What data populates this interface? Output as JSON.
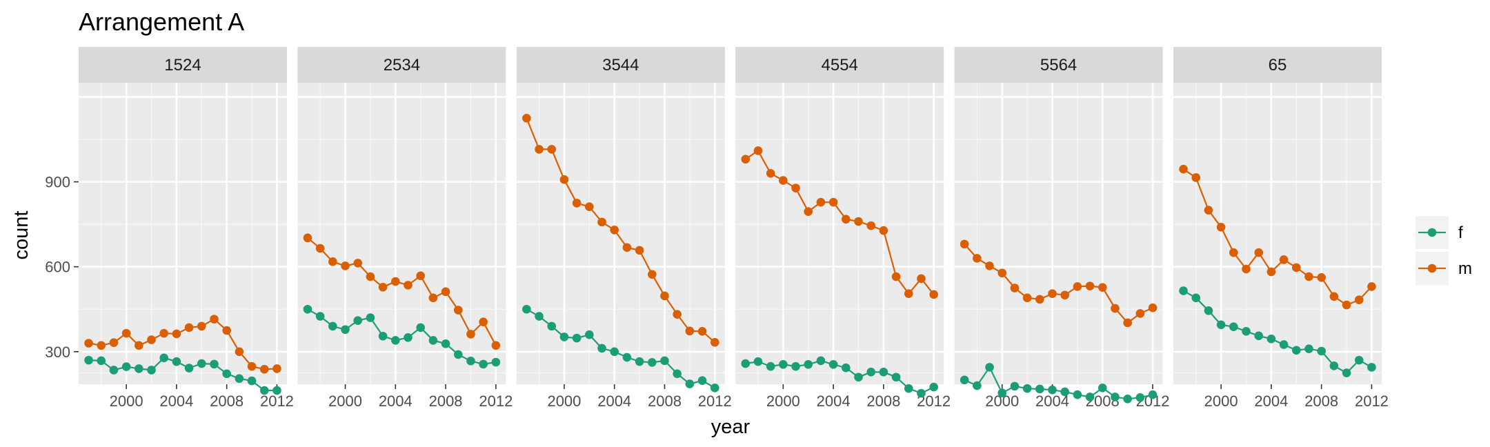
{
  "chart_data": {
    "type": "line",
    "title": "Arrangement A",
    "xlabel": "year",
    "ylabel": "count",
    "x_ticks": [
      2000,
      2004,
      2008,
      2012
    ],
    "y_ticks": [
      300,
      600,
      900
    ],
    "xlim": [
      1996.2,
      2012.8
    ],
    "ylim": [
      185,
      1250
    ],
    "legend_position": "right",
    "panels": [
      "1524",
      "2534",
      "3544",
      "4554",
      "5564",
      "65"
    ],
    "years": [
      1997,
      1998,
      1999,
      2000,
      2001,
      2002,
      2003,
      2004,
      2005,
      2006,
      2007,
      2008,
      2009,
      2010,
      2011,
      2012
    ],
    "series": [
      {
        "name": "f",
        "color": "#1B9E77",
        "panels": {
          "1524": [
            270,
            268,
            235,
            247,
            240,
            235,
            278,
            265,
            242,
            258,
            256,
            222,
            205,
            197,
            163,
            163
          ],
          "2534": [
            450,
            425,
            390,
            378,
            410,
            420,
            355,
            340,
            350,
            385,
            340,
            328,
            290,
            267,
            256,
            263
          ],
          "3544": [
            450,
            425,
            390,
            352,
            348,
            360,
            312,
            300,
            280,
            265,
            262,
            268,
            222,
            186,
            198,
            172
          ],
          "4554": [
            258,
            265,
            248,
            255,
            248,
            255,
            268,
            255,
            243,
            210,
            228,
            228,
            210,
            170,
            153,
            175
          ],
          "5564": [
            200,
            180,
            245,
            154,
            178,
            170,
            168,
            165,
            158,
            148,
            140,
            172,
            140,
            133,
            138,
            148
          ],
          "65": [
            515,
            490,
            445,
            395,
            388,
            372,
            356,
            345,
            325,
            305,
            310,
            302,
            250,
            225,
            270,
            245
          ]
        }
      },
      {
        "name": "m",
        "color": "#D95F02",
        "panels": {
          "1524": [
            330,
            322,
            332,
            365,
            322,
            342,
            365,
            363,
            385,
            390,
            415,
            375,
            300,
            248,
            238,
            240
          ],
          "2534": [
            702,
            665,
            618,
            603,
            613,
            565,
            528,
            548,
            535,
            568,
            490,
            512,
            447,
            362,
            405,
            322
          ],
          "3544": [
            1125,
            1015,
            1015,
            908,
            825,
            812,
            758,
            730,
            668,
            658,
            573,
            497,
            432,
            373,
            372,
            333
          ],
          "4554": [
            980,
            1010,
            930,
            905,
            878,
            795,
            828,
            828,
            768,
            760,
            745,
            728,
            565,
            505,
            558,
            502
          ],
          "5564": [
            680,
            630,
            603,
            578,
            525,
            490,
            485,
            505,
            500,
            530,
            532,
            527,
            453,
            402,
            435,
            455
          ],
          "65": [
            945,
            915,
            800,
            740,
            650,
            592,
            650,
            582,
            625,
            597,
            565,
            562,
            495,
            465,
            483,
            530
          ]
        }
      }
    ]
  }
}
